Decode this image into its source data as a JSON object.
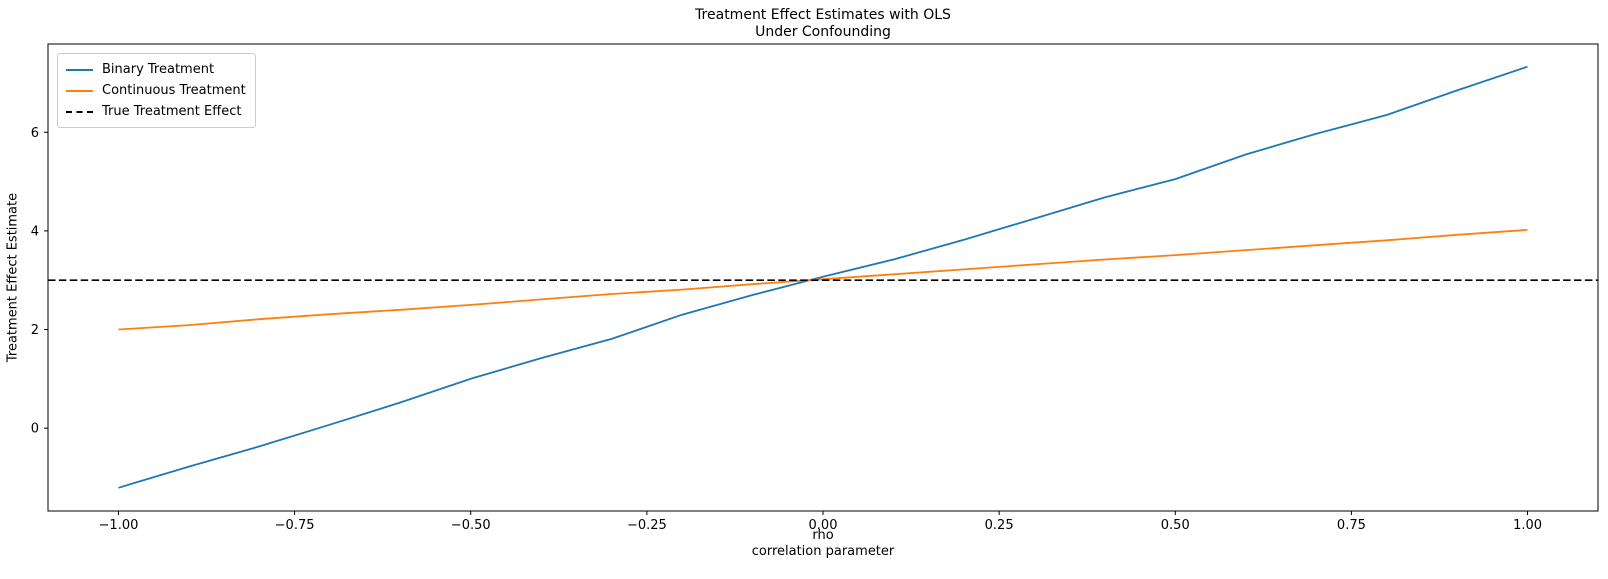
{
  "figure": {
    "title_line1": "Treatment Effect Estimates with OLS",
    "title_line2": "Under Confounding",
    "xlabel_line1": "rho",
    "xlabel_line2": "correlation parameter",
    "ylabel": "Treatment Effect Estimate",
    "background_color": "#ffffff"
  },
  "legend": {
    "items": [
      {
        "label": "Binary Treatment",
        "color": "#1f77b4",
        "dash": "solid"
      },
      {
        "label": "Continuous Treatment",
        "color": "#ff7f0e",
        "dash": "solid"
      },
      {
        "label": "True Treatment Effect",
        "color": "#000000",
        "dash": "dashed"
      }
    ]
  },
  "chart_data": {
    "type": "line",
    "title": "Treatment Effect Estimates with OLS\nUnder Confounding",
    "xlabel": "rho\ncorrelation parameter",
    "ylabel": "Treatment Effect Estimate",
    "grid": false,
    "legend_position": "upper-left",
    "xlim": [
      -1.1,
      1.1
    ],
    "ylim": [
      -1.68,
      7.79
    ],
    "xticks": [
      -1.0,
      -0.75,
      -0.5,
      -0.25,
      0.0,
      0.25,
      0.5,
      0.75,
      1.0
    ],
    "xtick_labels": [
      "−1.00",
      "−0.75",
      "−0.50",
      "−0.25",
      "0.00",
      "0.25",
      "0.50",
      "0.75",
      "1.00"
    ],
    "yticks": [
      0,
      2,
      4,
      6
    ],
    "ytick_labels": [
      "0",
      "2",
      "4",
      "6"
    ],
    "x": [
      -1.0,
      -0.9,
      -0.8,
      -0.7,
      -0.6,
      -0.5,
      -0.4,
      -0.3,
      -0.2,
      -0.1,
      0.0,
      0.1,
      0.2,
      0.3,
      0.4,
      0.5,
      0.6,
      0.7,
      0.8,
      0.9,
      1.0
    ],
    "series": [
      {
        "name": "Binary Treatment",
        "color": "#1f77b4",
        "style": "solid",
        "values": [
          -1.21,
          -0.78,
          -0.37,
          0.07,
          0.52,
          1.0,
          1.42,
          1.81,
          2.3,
          2.7,
          3.07,
          3.42,
          3.82,
          4.25,
          4.68,
          5.05,
          5.55,
          5.97,
          6.35,
          6.85,
          7.33
        ]
      },
      {
        "name": "Continuous Treatment",
        "color": "#ff7f0e",
        "style": "solid",
        "values": [
          2.0,
          2.09,
          2.21,
          2.31,
          2.4,
          2.5,
          2.61,
          2.72,
          2.81,
          2.92,
          3.02,
          3.12,
          3.22,
          3.32,
          3.42,
          3.51,
          3.61,
          3.71,
          3.81,
          3.92,
          4.02
        ]
      },
      {
        "name": "True Treatment Effect",
        "color": "#000000",
        "style": "dashed",
        "constant": 3.0
      }
    ]
  }
}
